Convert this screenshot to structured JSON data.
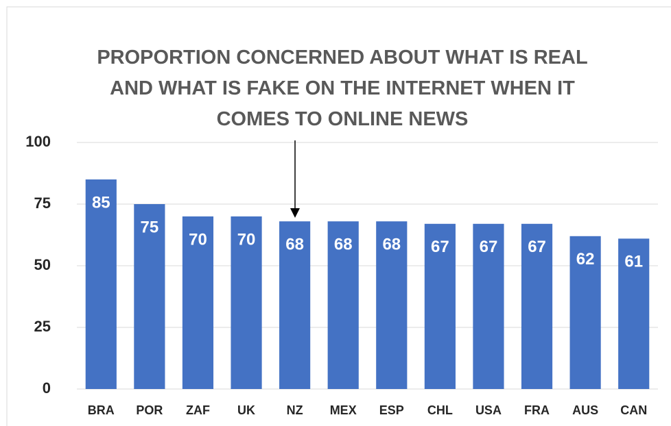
{
  "chart_data": {
    "type": "bar",
    "title": "PROPORTION CONCERNED ABOUT WHAT IS REAL AND WHAT IS FAKE ON THE INTERNET WHEN IT COMES TO ONLINE NEWS",
    "categories": [
      "BRA",
      "POR",
      "ZAF",
      "UK",
      "NZ",
      "MEX",
      "ESP",
      "CHL",
      "USA",
      "FRA",
      "AUS",
      "CAN"
    ],
    "values": [
      85,
      75,
      70,
      70,
      68,
      68,
      68,
      67,
      67,
      67,
      62,
      61
    ],
    "color": "#4472c4",
    "ylim": [
      0,
      100
    ],
    "yticks": [
      0,
      25,
      50,
      75,
      100
    ],
    "grid": true
  }
}
